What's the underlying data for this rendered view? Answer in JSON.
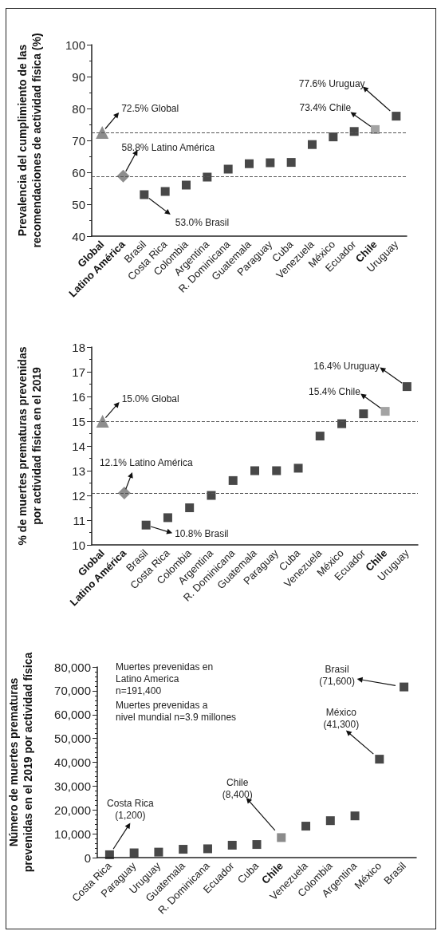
{
  "chart_data": [
    {
      "type": "scatter",
      "ylabel": "Prevalencia del cumplimiento de las\nrecomendaciones de actividad física (%)",
      "categories": [
        "Global",
        "Latino América",
        "Brasil",
        "Costa Rica",
        "Colombia",
        "Argentina",
        "R. Dominicana",
        "Guatemala",
        "Paraguay",
        "Cuba",
        "Venezuela",
        "México",
        "Ecuador",
        "Chile",
        "Uruguay"
      ],
      "series": [
        {
          "marker": "triangle",
          "color": "#707070",
          "x": [
            "Global"
          ],
          "values": [
            72.5
          ]
        },
        {
          "marker": "diamond",
          "color": "#707070",
          "x": [
            "Latino América"
          ],
          "values": [
            58.8
          ]
        },
        {
          "marker": "square",
          "x": [
            "Brasil",
            "Costa Rica",
            "Colombia",
            "Argentina",
            "R. Dominicana",
            "Guatemala",
            "Paraguay",
            "Cuba",
            "Venezuela",
            "México",
            "Ecuador",
            "Chile",
            "Uruguay"
          ],
          "values": [
            53.0,
            54,
            56,
            58.5,
            61,
            62.7,
            63,
            63.1,
            68.7,
            71.1,
            72.8,
            73.4,
            77.6
          ],
          "colors": [
            "#1a1a1a",
            "#1a1a1a",
            "#1a1a1a",
            "#1a1a1a",
            "#1a1a1a",
            "#1a1a1a",
            "#1a1a1a",
            "#1a1a1a",
            "#1a1a1a",
            "#1a1a1a",
            "#1a1a1a",
            "#8c8c8c",
            "#1a1a1a"
          ]
        }
      ],
      "ylim": [
        40,
        100
      ],
      "yticks": [
        40,
        50,
        60,
        70,
        80,
        90,
        100
      ],
      "grid": false,
      "ref_lines": [
        {
          "axis": "y",
          "value": 72.5,
          "line_style": "dashed",
          "color": "#555555"
        },
        {
          "axis": "y",
          "value": 58.8,
          "line_style": "dashed",
          "color": "#555555"
        }
      ],
      "annotations": [
        {
          "text": "72.5% Global",
          "x": "Global",
          "y": 72.5
        },
        {
          "text": "58.8% Latino América",
          "x": "Latino América",
          "y": 58.8
        },
        {
          "text": "53.0% Brasil",
          "x": "Brasil",
          "y": 53.0
        },
        {
          "text": "73.4% Chile",
          "x": "Chile",
          "y": 73.4
        },
        "77.6% Uruguay"
      ]
    },
    {
      "type": "scatter",
      "ylabel": "% de muertes prematuras prevenidas\npor actividad física en el 2019",
      "categories": [
        "Global",
        "Latino América",
        "Brasil",
        "Costa Rica",
        "Colombia",
        "Argentina",
        "R. Dominicana",
        "Guatemala",
        "Paraguay",
        "Cuba",
        "Venezuela",
        "México",
        "Ecuador",
        "Chile",
        "Uruguay"
      ],
      "series": [
        {
          "marker": "triangle",
          "color": "#707070",
          "x": [
            "Global"
          ],
          "values": [
            15.0
          ]
        },
        {
          "marker": "diamond",
          "color": "#707070",
          "x": [
            "Latino América"
          ],
          "values": [
            12.1
          ]
        },
        {
          "marker": "square",
          "x": [
            "Brasil",
            "Costa Rica",
            "Colombia",
            "Argentina",
            "R. Dominicana",
            "Guatemala",
            "Paraguay",
            "Cuba",
            "Venezuela",
            "México",
            "Ecuador",
            "Chile",
            "Uruguay"
          ],
          "values": [
            10.8,
            11.1,
            11.5,
            12.0,
            12.6,
            13.0,
            13.0,
            13.1,
            14.4,
            14.9,
            15.3,
            15.4,
            16.4
          ],
          "colors": [
            "#1a1a1a",
            "#1a1a1a",
            "#1a1a1a",
            "#1a1a1a",
            "#1a1a1a",
            "#1a1a1a",
            "#1a1a1a",
            "#1a1a1a",
            "#1a1a1a",
            "#1a1a1a",
            "#1a1a1a",
            "#8c8c8c",
            "#1a1a1a"
          ]
        }
      ],
      "ylim": [
        10,
        18
      ],
      "yticks": [
        10,
        11,
        12,
        13,
        14,
        15,
        16,
        17,
        18
      ],
      "grid": false,
      "ref_lines": [
        {
          "axis": "y",
          "value": 15.0,
          "line_style": "dashed",
          "color": "#555555"
        },
        {
          "axis": "y",
          "value": 12.1,
          "line_style": "dashed",
          "color": "#555555"
        }
      ],
      "annotations": [
        {
          "text": "15.0% Global",
          "x": "Global",
          "y": 15.0
        },
        {
          "text": "12.1% Latino América",
          "x": "Latino América",
          "y": 12.1
        },
        {
          "text": "10.8% Brasil",
          "x": "Brasil",
          "y": 10.8
        },
        {
          "text": "15.4% Chile",
          "x": "Chile",
          "y": 15.4
        },
        {
          "text": "16.4% Uruguay",
          "x": "Uruguay",
          "y": 16.4
        }
      ]
    },
    {
      "type": "scatter",
      "ylabel": "Número de muertes prematuras\nprevenidas en el 2019 por actividad física",
      "categories": [
        "Costa Rica",
        "Paraguay",
        "Uruguay",
        "Guatemala",
        "R. Dominicana",
        "Ecuador",
        "Cuba",
        "Chile",
        "Venezuela",
        "Colombia",
        "Argentina",
        "México",
        "Brasil"
      ],
      "series": [
        {
          "marker": "square",
          "values": [
            1200,
            2000,
            2300,
            3500,
            3700,
            5200,
            5500,
            8400,
            13200,
            15500,
            17500,
            41300,
            71600
          ],
          "colors": [
            "#1a1a1a",
            "#1a1a1a",
            "#1a1a1a",
            "#1a1a1a",
            "#1a1a1a",
            "#1a1a1a",
            "#1a1a1a",
            "#6e6e6e",
            "#1a1a1a",
            "#1a1a1a",
            "#1a1a1a",
            "#1a1a1a",
            "#1a1a1a"
          ]
        }
      ],
      "ylim": [
        0,
        80000
      ],
      "yticks": [
        0,
        {
          "value": 10000,
          "label": "10,000"
        },
        {
          "value": 20000,
          "label": "20,000"
        },
        {
          "value": 30000,
          "label": "30,000"
        },
        {
          "value": 40000,
          "label": "40,000"
        },
        {
          "value": 50000,
          "label": "50,000"
        },
        {
          "value": 60000,
          "label": "60,000"
        },
        {
          "value": 70000,
          "label": "70,000"
        },
        {
          "value": 80000,
          "label": "80,000"
        }
      ],
      "grid": false,
      "annotations": [
        "Muertes prevenidas en\nLatino America\nn=191,400",
        "Muertes prevenidas a\nnivel mundial n=3.9 millones",
        {
          "text": "Costa Rica\n(1,200)",
          "x": "Costa Rica",
          "y": 1200
        },
        "Chile\n(8,400)",
        "México\n(41,300)",
        "Brasil\n(71,600)"
      ]
    }
  ]
}
